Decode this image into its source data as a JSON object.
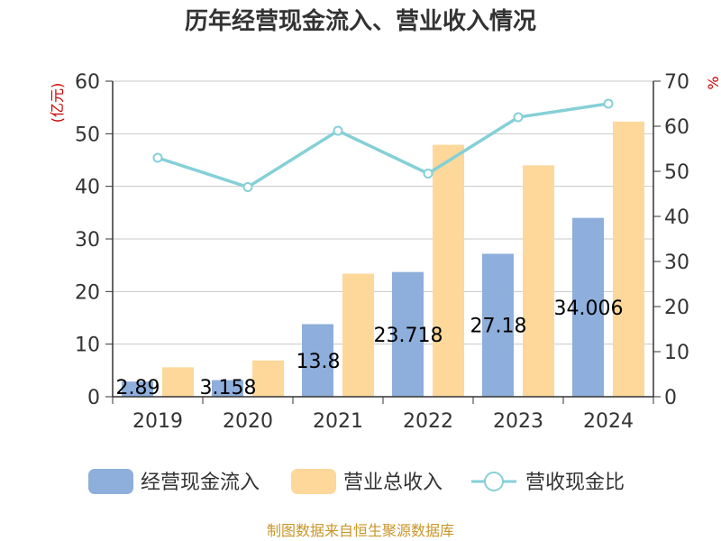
{
  "chart_data": {
    "type": "bar",
    "title": "历年经营现金流入、营业收入情况",
    "categories": [
      "2019",
      "2020",
      "2021",
      "2022",
      "2023",
      "2024"
    ],
    "series": [
      {
        "name": "经营现金流入",
        "kind": "bar",
        "axis": "left",
        "color": "#8eaedb",
        "values": [
          2.89,
          3.158,
          13.8,
          23.718,
          27.18,
          34.006
        ],
        "labels": [
          "2.89",
          "3.158",
          "13.8",
          "23.718",
          "27.18",
          "34.006"
        ]
      },
      {
        "name": "营业总收入",
        "kind": "bar",
        "axis": "left",
        "color": "#fdd89a",
        "values": [
          5.6,
          6.9,
          23.4,
          47.9,
          44.0,
          52.3
        ]
      },
      {
        "name": "营收现金比",
        "kind": "line",
        "axis": "right",
        "color": "#85d0d7",
        "values": [
          53,
          46.5,
          59,
          49.5,
          62,
          65
        ]
      }
    ],
    "left_axis": {
      "label": "(亿元)",
      "min": 0,
      "max": 60,
      "ticks": [
        "0",
        "10",
        "20",
        "30",
        "40",
        "50",
        "60"
      ]
    },
    "right_axis": {
      "label": "%",
      "min": 0,
      "max": 70,
      "ticks": [
        "0",
        "10",
        "20",
        "30",
        "40",
        "50",
        "60",
        "70"
      ]
    },
    "grid": true,
    "legend_position": "bottom",
    "source": "制图数据来自恒生聚源数据库"
  }
}
